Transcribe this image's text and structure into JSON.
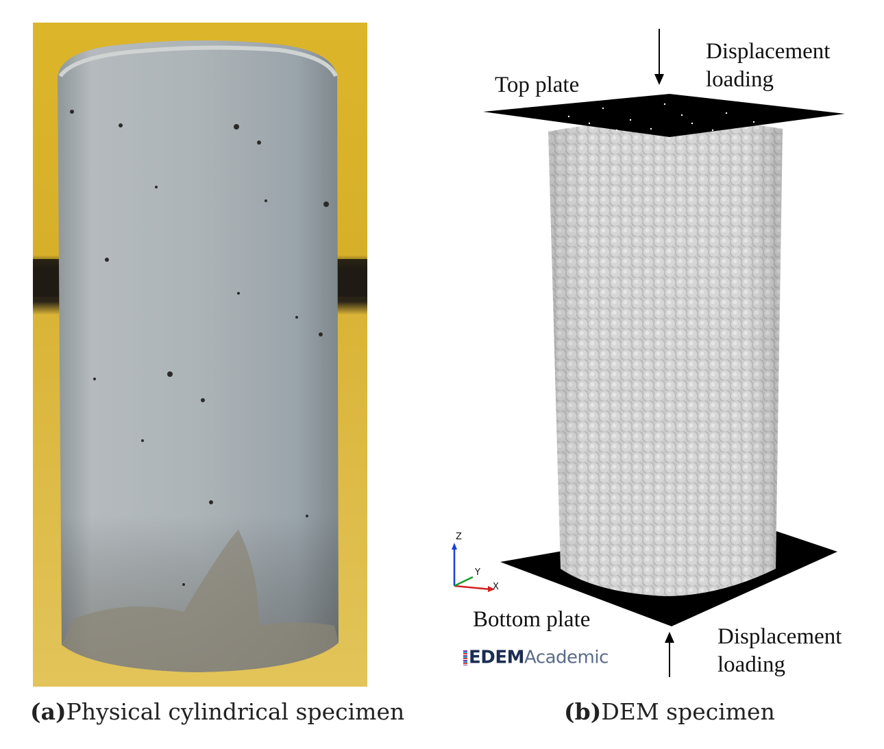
{
  "figure": {
    "panel_a": {
      "caption_tag": "(a)",
      "caption_text": "Physical cylindrical specimen"
    },
    "panel_b": {
      "caption_tag": "(b)",
      "caption_text": "DEM specimen",
      "labels": {
        "top_plate": "Top plate",
        "displacement_top_line1": "Displacement",
        "displacement_top_line2": "loading",
        "bottom_plate": "Bottom plate",
        "displacement_bottom_line1": "Displacement",
        "displacement_bottom_line2": "loading"
      },
      "axes": {
        "z": "Z",
        "y": "Y",
        "x": "X"
      },
      "logo": {
        "bold": "EDEM",
        "light": "Academic"
      }
    }
  },
  "colors": {
    "background_yellow": "#d8b326",
    "concrete": "#a7adb0",
    "particle": "#c9c9c9",
    "plate": "#000000"
  }
}
